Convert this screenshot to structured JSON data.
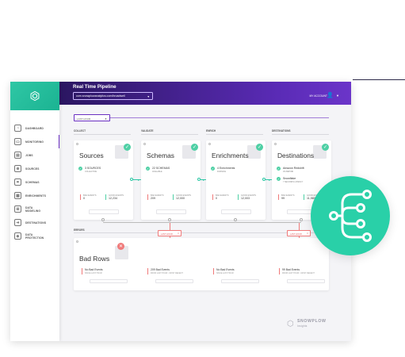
{
  "header": {
    "title": "Real Time Pipeline",
    "url": "com.snowplowanalytics.com/broadwell",
    "account": "MY ACCOUNT"
  },
  "sidebar": {
    "items": [
      {
        "label": "DASHBOARD",
        "icon": "dashboard-icon"
      },
      {
        "label": "MONITORING",
        "icon": "monitor-icon"
      },
      {
        "label": "JOBS",
        "icon": "jobs-icon"
      },
      {
        "label": "SOURCES",
        "icon": "sources-icon"
      },
      {
        "label": "SCHEMAS",
        "icon": "schemas-icon"
      },
      {
        "label": "ENRICHMENTS",
        "icon": "enrichments-icon"
      },
      {
        "label": "DATA MODELING",
        "icon": "data-modeling-icon"
      },
      {
        "label": "DESTINATIONS",
        "icon": "destinations-icon"
      },
      {
        "label": "DATA PROTECTION",
        "icon": "data-protection-icon"
      }
    ]
  },
  "filter": {
    "time_range": "LAST HOUR"
  },
  "columns": [
    "COLLECT",
    "VALIDATE",
    "ENRICH",
    "DESTINATIONS"
  ],
  "cards": [
    {
      "title": "Sources",
      "status": "3 SOURCES",
      "status_sub": "COLLECTING",
      "metric1_label": "BAD EVENTS",
      "metric1_value": "0",
      "metric2_label": "GOOD EVENTS",
      "metric2_value": "12,234"
    },
    {
      "title": "Schemas",
      "status": "22 SCHEMAS",
      "status_sub": "AVAILABLE",
      "metric1_label": "BAD EVENTS",
      "metric1_value": "209",
      "metric2_label": "GOOD EVENTS",
      "metric2_value": "12,000"
    },
    {
      "title": "Enrichments",
      "status": "4 Enrichments",
      "status_sub": "RUNNING",
      "metric1_label": "BAD EVENTS",
      "metric1_value": "0",
      "metric2_label": "GOOD EVENTS",
      "metric2_value": "12,003"
    },
    {
      "title": "Destinations",
      "status": "Amazon Redshift",
      "status_sub": "0% BEHIND",
      "status2": "Snowflake",
      "status2_sub": "7 SECONDS LATENCY",
      "metric1_label": "BAD EVENTS",
      "metric1_value": "99",
      "metric2_label": "GOOD EVENTS",
      "metric2_value": "11,980"
    }
  ],
  "errors": {
    "label": "ERRORS",
    "filter_label": "LAST HOUR",
    "panel_title": "Bad Rows",
    "items": [
      {
        "title": "No Bad Events",
        "sub": "SINCE LAST HOUR"
      },
      {
        "title": "209 Bad Events",
        "sub": "FROM LAST HOUR - MOST RECENT"
      },
      {
        "title": "No Bad Events",
        "sub": "SINCE LAST HOUR"
      },
      {
        "title": "99 Bad Events",
        "sub": "FROM LAST HOUR - MOST RECENT"
      }
    ]
  },
  "brand": {
    "name": "SNOWPLOW",
    "product": "Insights"
  },
  "colors": {
    "accent": "#6a2fc2",
    "success": "#4fd0a5",
    "error": "#f07a7a",
    "circle": "#29d0a8"
  }
}
